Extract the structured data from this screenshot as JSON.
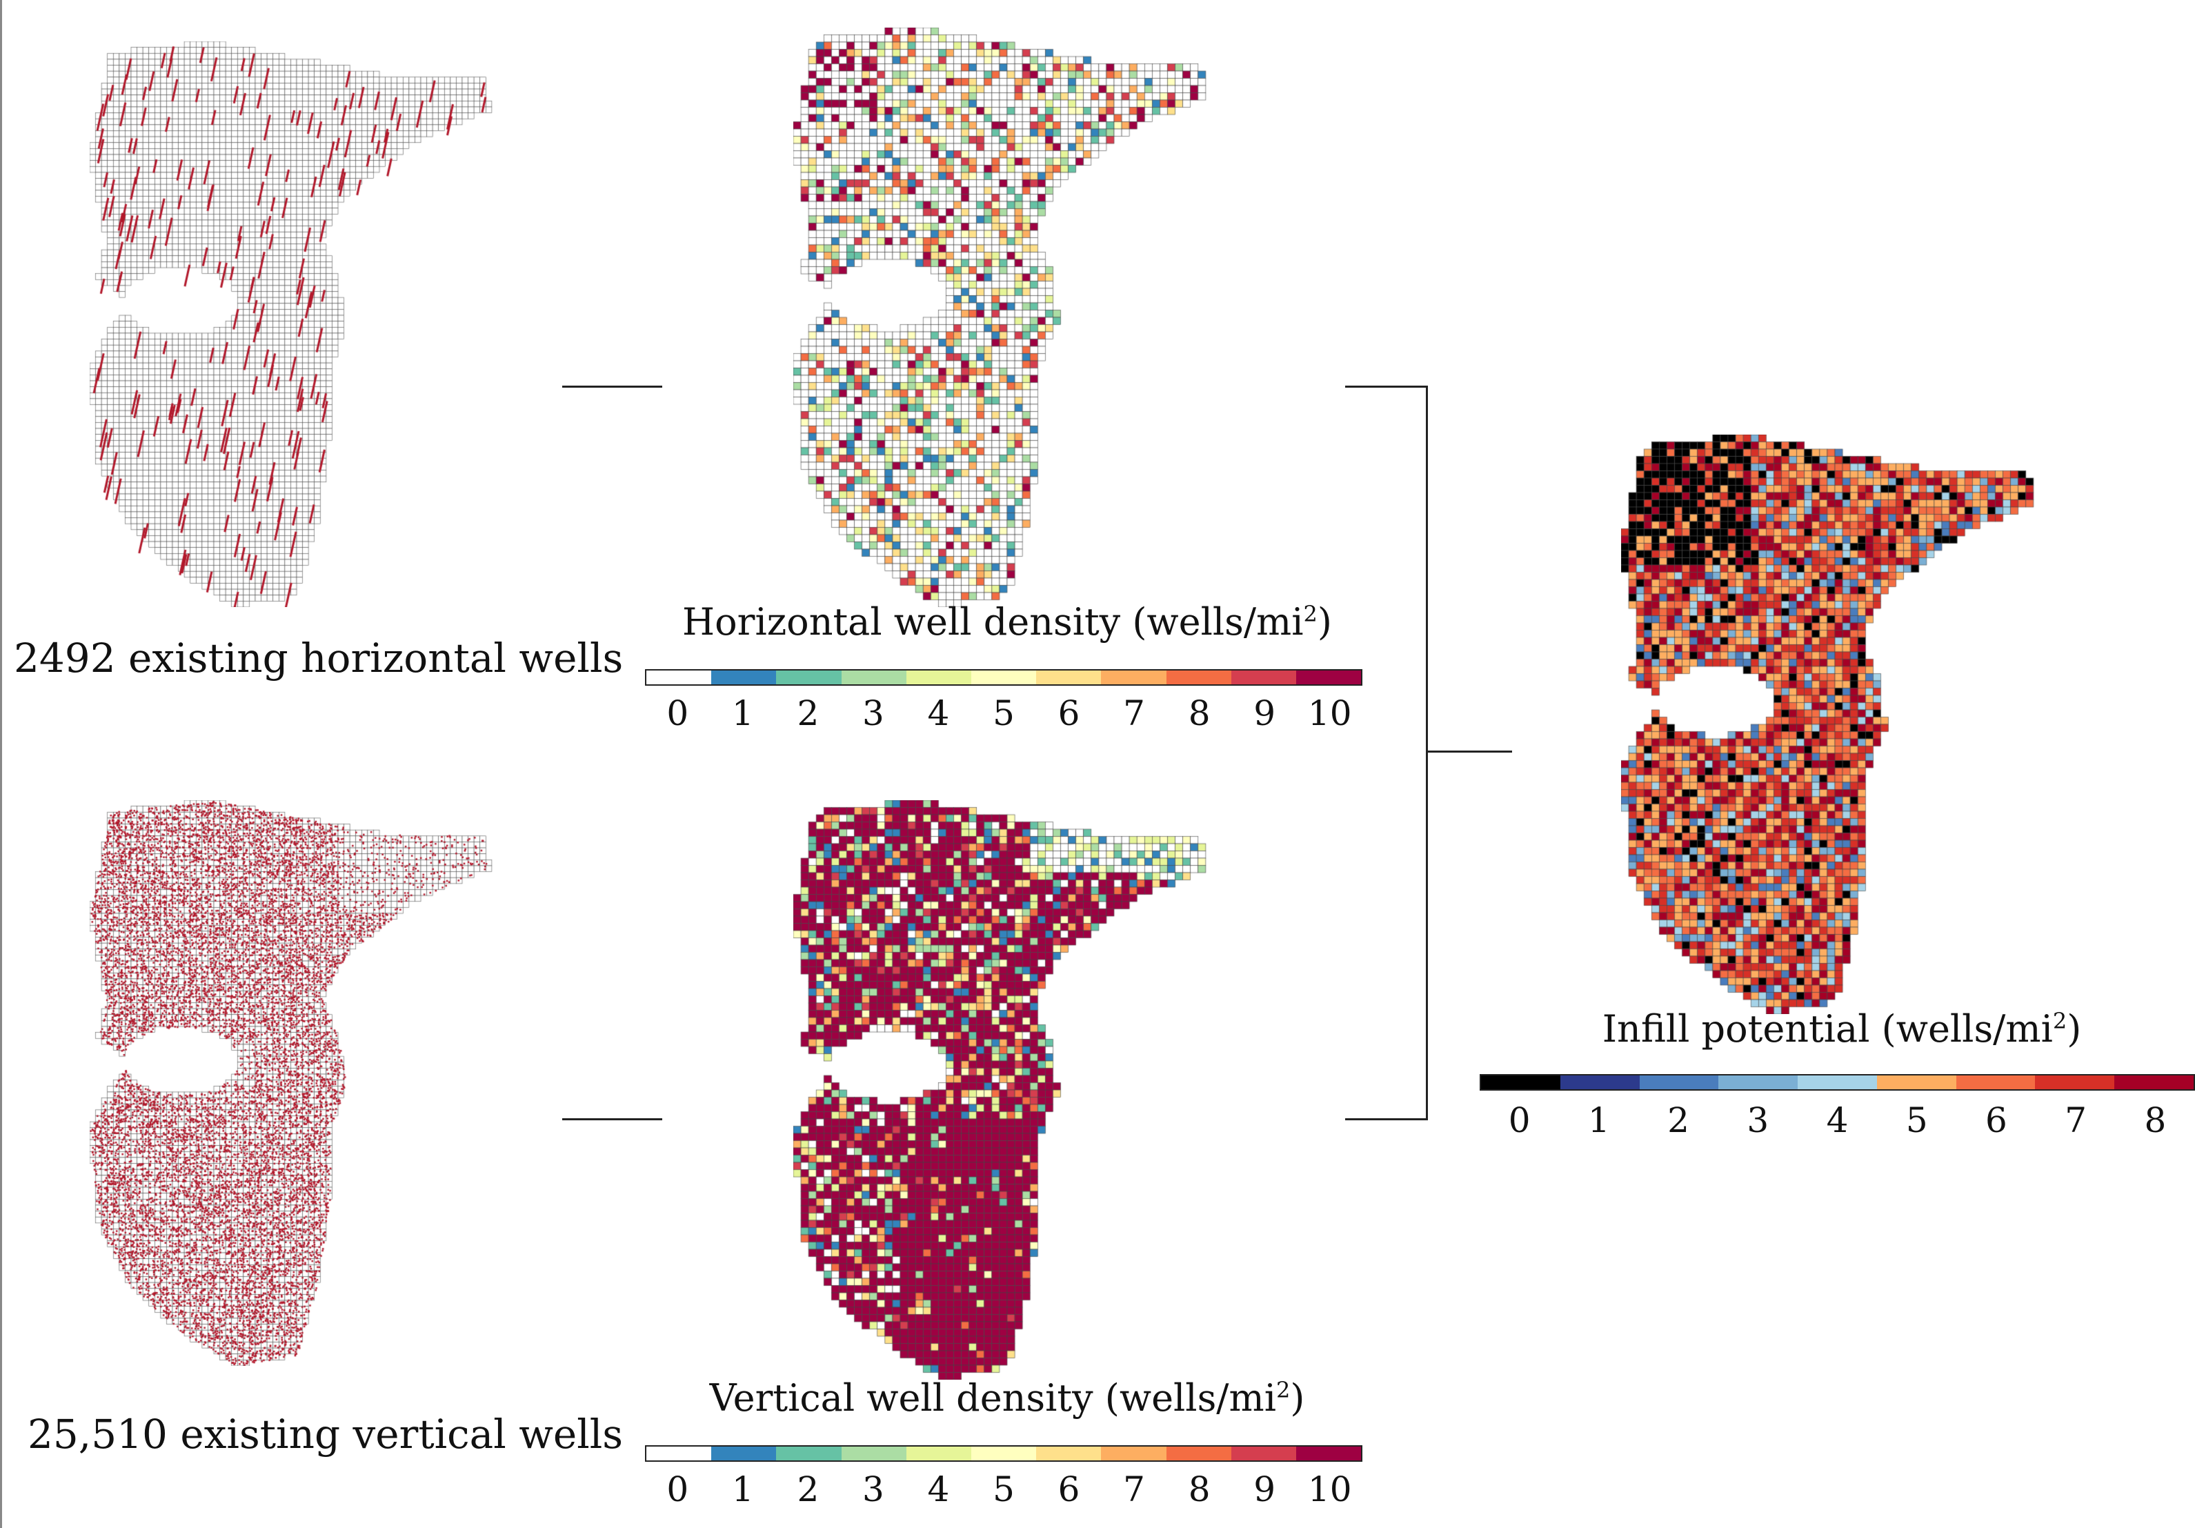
{
  "labels": {
    "horizontal_wells": "2492 existing horizontal wells",
    "vertical_wells": "25,510 existing vertical wells",
    "horizontal_density_title": "Horizontal well density (wells/mi",
    "vertical_density_title": "Vertical well density (wells/mi",
    "infill_title": "Infill potential (wells/mi",
    "title_superscript": "2",
    "title_close": ")"
  },
  "density_colorbar": {
    "ticks": [
      "0",
      "1",
      "2",
      "3",
      "4",
      "5",
      "6",
      "7",
      "8",
      "9",
      "10"
    ],
    "colors": [
      "#ffffff",
      "#3384bc",
      "#66c2a5",
      "#abdda4",
      "#e6f598",
      "#ffffbf",
      "#fee08b",
      "#fdae61",
      "#f46d43",
      "#d53e4f",
      "#9e0142"
    ]
  },
  "infill_colorbar": {
    "ticks": [
      "0",
      "1",
      "2",
      "3",
      "4",
      "5",
      "6",
      "7",
      "8"
    ],
    "colors": [
      "#000000",
      "#2c3a8c",
      "#4a7dbd",
      "#7bafd4",
      "#a6d3e8",
      "#fdae61",
      "#f46d43",
      "#d73027",
      "#a50026"
    ]
  },
  "colors": {
    "well_red": "#b2182b",
    "grid_line": "#333333"
  }
}
